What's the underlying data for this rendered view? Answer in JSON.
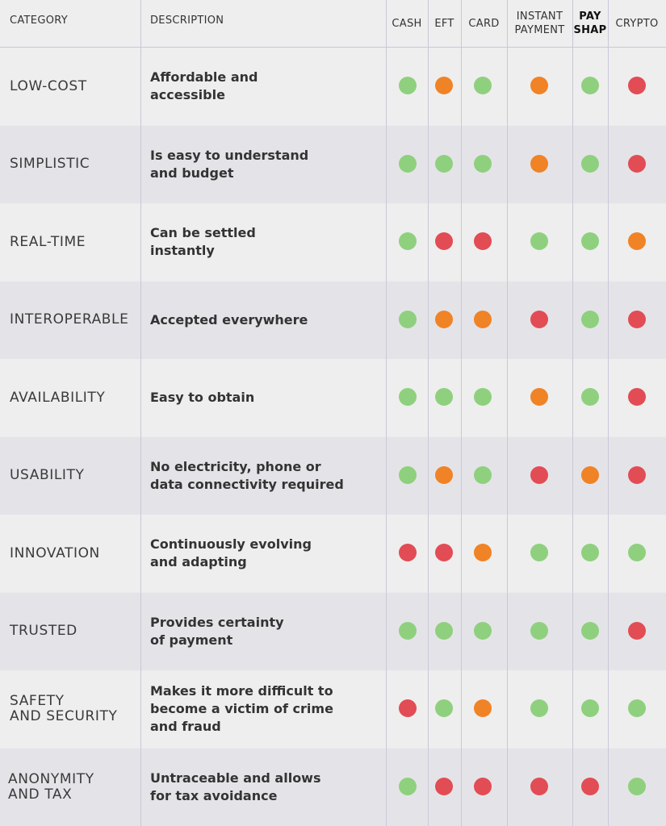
{
  "colors": {
    "good": "#8fd07e",
    "medium": "#f08326",
    "poor": "#e24c55"
  },
  "chart_data": {
    "type": "table",
    "columns": [
      "CATEGORY",
      "DESCRIPTION",
      "CASH",
      "EFT",
      "CARD",
      "INSTANT\nPAYMENT",
      "PAY\nSHAP",
      "CRYPTO"
    ],
    "rows": [
      {
        "category": "LOW-COST",
        "description": "Affordable and\naccessible",
        "ratings": [
          "green",
          "orange",
          "green",
          "orange",
          "green",
          "red"
        ]
      },
      {
        "category": "SIMPLISTIC",
        "description": "Is easy to understand\nand budget",
        "ratings": [
          "green",
          "green",
          "green",
          "orange",
          "green",
          "red"
        ]
      },
      {
        "category": "REAL-TIME",
        "description": "Can be settled\ninstantly",
        "ratings": [
          "green",
          "red",
          "red",
          "green",
          "green",
          "orange"
        ]
      },
      {
        "category": "INTEROPERABLE",
        "description": "Accepted everywhere",
        "ratings": [
          "green",
          "orange",
          "orange",
          "red",
          "green",
          "red"
        ]
      },
      {
        "category": "AVAILABILITY",
        "description": "Easy to obtain",
        "ratings": [
          "green",
          "green",
          "green",
          "orange",
          "green",
          "red"
        ]
      },
      {
        "category": "USABILITY",
        "description": "No electricity, phone or\ndata connectivity required",
        "ratings": [
          "green",
          "orange",
          "green",
          "red",
          "orange",
          "red"
        ]
      },
      {
        "category": "INNOVATION",
        "description": "Continuously evolving\nand adapting",
        "ratings": [
          "red",
          "red",
          "orange",
          "green",
          "green",
          "green"
        ]
      },
      {
        "category": "TRUSTED",
        "description": "Provides certainty\nof payment",
        "ratings": [
          "green",
          "green",
          "green",
          "green",
          "green",
          "red"
        ]
      },
      {
        "category": "SAFETY\nAND SECURITY",
        "description": "Makes it more difficult to\nbecome a victim of crime\nand fraud",
        "ratings": [
          "red",
          "green",
          "orange",
          "green",
          "green",
          "green"
        ]
      },
      {
        "category": "ANONYMITY\nAND TAX",
        "description": "Untraceable and allows\nfor tax avoidance",
        "ratings": [
          "green",
          "red",
          "red",
          "red",
          "red",
          "green"
        ]
      }
    ]
  }
}
